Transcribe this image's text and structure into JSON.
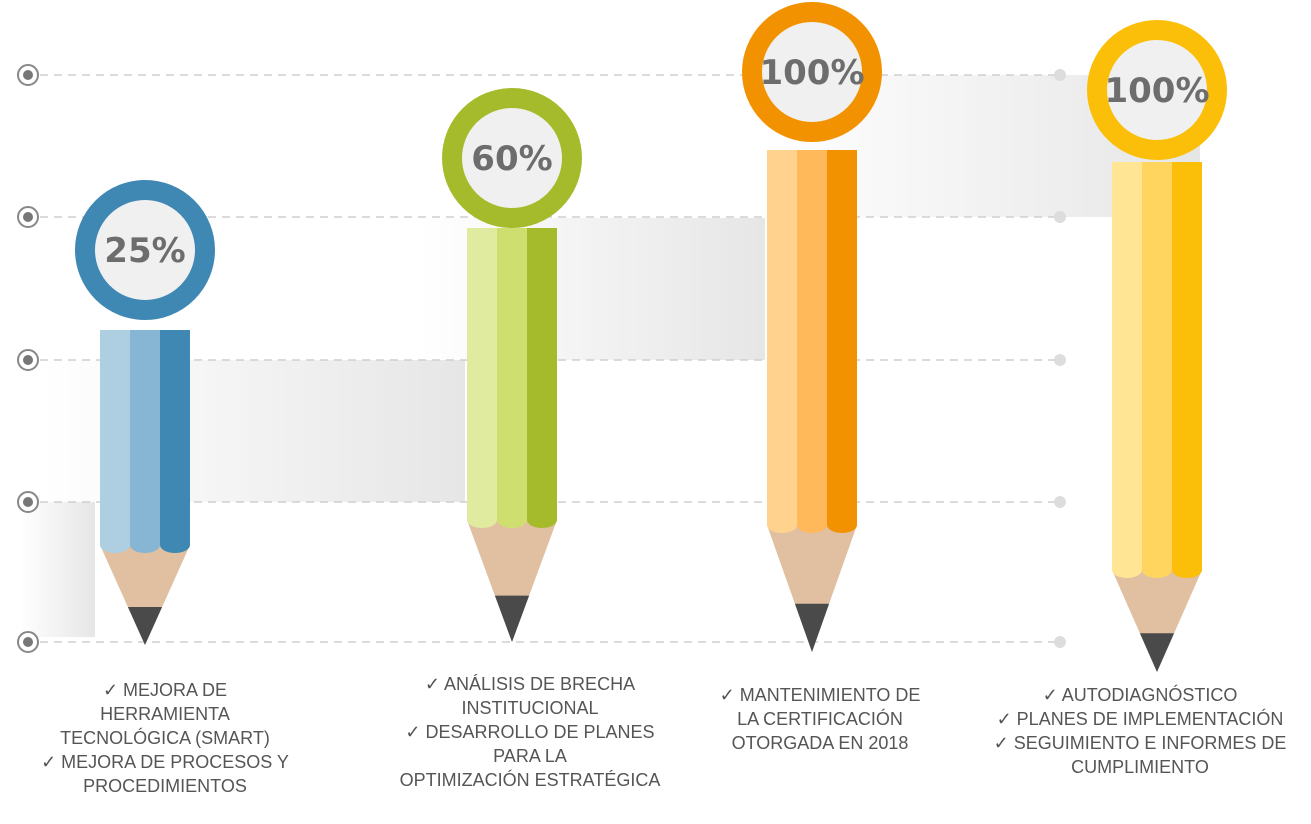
{
  "items": [
    {
      "percent": "25%",
      "lines": [
        "✓ MEJORA DE",
        "HERRAMIENTA",
        "TECNOLÓGICA (SMART)",
        "✓ MEJORA DE PROCESOS Y",
        "PROCEDIMIENTOS"
      ]
    },
    {
      "percent": "60%",
      "lines": [
        "✓ ANÁLISIS DE BRECHA",
        "INSTITUCIONAL",
        "✓ DESARROLLO DE PLANES",
        "PARA LA",
        "OPTIMIZACIÓN ESTRATÉGICA"
      ]
    },
    {
      "percent": "100%",
      "lines": [
        "✓ MANTENIMIENTO DE",
        "LA CERTIFICACIÓN",
        "OTORGADA EN 2018"
      ]
    },
    {
      "percent": "100%",
      "lines": [
        "✓ AUTODIAGNÓSTICO",
        "✓ PLANES DE IMPLEMENTACIÓN",
        "✓ SEGUIMIENTO E INFORMES DE",
        "CUMPLIMIENTO"
      ]
    }
  ]
}
